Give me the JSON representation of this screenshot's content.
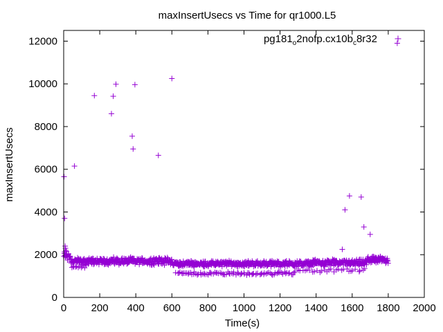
{
  "chart_data": {
    "type": "scatter",
    "title": "maxInsertUsecs vs Time for qr1000.L5",
    "xlabel": "Time(s)",
    "ylabel": "maxInsertUsecs",
    "xlim": [
      0,
      2000
    ],
    "ylim": [
      0,
      12500
    ],
    "xticks": [
      0,
      200,
      400,
      600,
      800,
      1000,
      1200,
      1400,
      1600,
      1800,
      2000
    ],
    "yticks": [
      0,
      2000,
      4000,
      6000,
      8000,
      10000,
      12000
    ],
    "xtick_labels": [
      "0",
      "200",
      "400",
      "600",
      "800",
      "1000",
      "1200",
      "1400",
      "1600",
      "1800",
      "2000"
    ],
    "ytick_labels": [
      "0",
      "2000",
      "4000",
      "6000",
      "8000",
      "10000",
      "12000"
    ],
    "grid": false,
    "legend_position": "top-right",
    "series": [
      {
        "name_parts": [
          "pg181",
          "o",
          "2nofp.cx10b",
          "c",
          "8r32"
        ],
        "color": "#9400d3",
        "marker": "plus",
        "segments": [
          {
            "x_start": 0,
            "x_end": 40,
            "center": 1950,
            "spread": 300,
            "count": 20
          },
          {
            "x_start": 40,
            "x_end": 600,
            "center": 1700,
            "spread": 200,
            "count": 300
          },
          {
            "x_start": 600,
            "x_end": 1380,
            "center": 1580,
            "spread": 160,
            "count": 400
          },
          {
            "x_start": 1380,
            "x_end": 1680,
            "center": 1620,
            "spread": 180,
            "count": 160
          },
          {
            "x_start": 1680,
            "x_end": 1800,
            "center": 1760,
            "spread": 180,
            "count": 70
          },
          {
            "x_start": 40,
            "x_end": 130,
            "center": 1450,
            "spread": 120,
            "count": 12
          },
          {
            "x_start": 620,
            "x_end": 1280,
            "center": 1120,
            "spread": 90,
            "count": 90
          },
          {
            "x_start": 1280,
            "x_end": 1680,
            "center": 1260,
            "spread": 110,
            "count": 30
          }
        ],
        "points": [
          [
            2,
            5650
          ],
          [
            5,
            3700
          ],
          [
            8,
            2400
          ],
          [
            10,
            2300
          ],
          [
            12,
            2200
          ],
          [
            15,
            2150
          ],
          [
            60,
            6150
          ],
          [
            170,
            9450
          ],
          [
            265,
            8600
          ],
          [
            275,
            9420
          ],
          [
            290,
            9980
          ],
          [
            380,
            7550
          ],
          [
            385,
            6950
          ],
          [
            395,
            9960
          ],
          [
            525,
            6650
          ],
          [
            600,
            10250
          ],
          [
            1545,
            2250
          ],
          [
            1560,
            4100
          ],
          [
            1585,
            4750
          ],
          [
            1650,
            4700
          ],
          [
            1665,
            3300
          ],
          [
            1700,
            2950
          ],
          [
            1850,
            11900
          ]
        ]
      }
    ]
  }
}
